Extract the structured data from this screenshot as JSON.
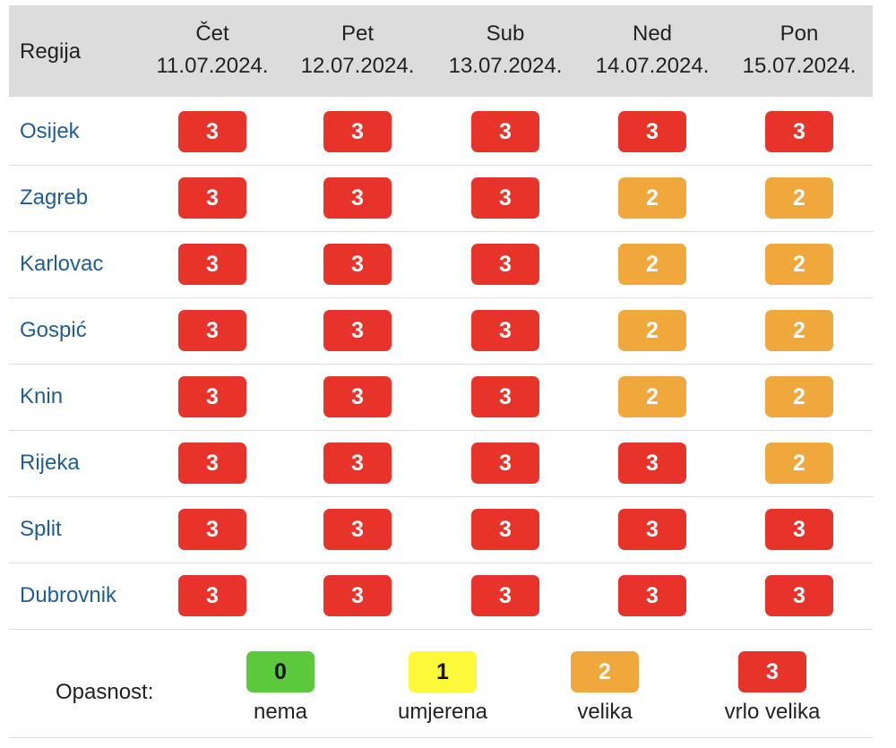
{
  "header": {
    "region_label": "Regija",
    "days": [
      {
        "day": "Čet",
        "date": "11.07.2024."
      },
      {
        "day": "Pet",
        "date": "12.07.2024."
      },
      {
        "day": "Sub",
        "date": "13.07.2024."
      },
      {
        "day": "Ned",
        "date": "14.07.2024."
      },
      {
        "day": "Pon",
        "date": "15.07.2024."
      }
    ]
  },
  "rows": [
    {
      "region": "Osijek",
      "levels": [
        "3",
        "3",
        "3",
        "3",
        "3"
      ]
    },
    {
      "region": "Zagreb",
      "levels": [
        "3",
        "3",
        "3",
        "2",
        "2"
      ]
    },
    {
      "region": "Karlovac",
      "levels": [
        "3",
        "3",
        "3",
        "2",
        "2"
      ]
    },
    {
      "region": "Gospić",
      "levels": [
        "3",
        "3",
        "3",
        "2",
        "2"
      ]
    },
    {
      "region": "Knin",
      "levels": [
        "3",
        "3",
        "3",
        "2",
        "2"
      ]
    },
    {
      "region": "Rijeka",
      "levels": [
        "3",
        "3",
        "3",
        "3",
        "2"
      ]
    },
    {
      "region": "Split",
      "levels": [
        "3",
        "3",
        "3",
        "3",
        "3"
      ]
    },
    {
      "region": "Dubrovnik",
      "levels": [
        "3",
        "3",
        "3",
        "3",
        "3"
      ]
    }
  ],
  "legend": {
    "label": "Opasnost:",
    "items": [
      {
        "value": "0",
        "text": "nema"
      },
      {
        "value": "1",
        "text": "umjerena"
      },
      {
        "value": "2",
        "text": "velika"
      },
      {
        "value": "3",
        "text": "vrlo velika"
      }
    ]
  },
  "colors": {
    "level_0": "#5cc83b",
    "level_1": "#fbf93a",
    "level_2": "#f0a73c",
    "level_3": "#e8332a",
    "region_link": "#1f5d96",
    "header_bg": "#dcdcdc"
  }
}
